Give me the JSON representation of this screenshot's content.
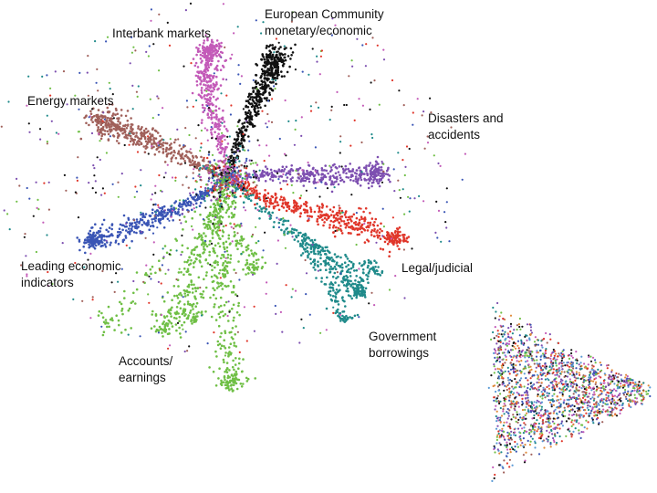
{
  "chart_data": {
    "type": "scatter",
    "title": "",
    "xlabel": "",
    "ylabel": "",
    "grid": false,
    "legend": "none",
    "background": "#ffffff",
    "labels": [
      {
        "key": "interbank",
        "lines": [
          "Interbank markets"
        ]
      },
      {
        "key": "ec",
        "lines": [
          "European Community",
          "monetary/economic"
        ]
      },
      {
        "key": "energy",
        "lines": [
          "Energy markets"
        ]
      },
      {
        "key": "disasters",
        "lines": [
          "Disasters and",
          "accidents"
        ]
      },
      {
        "key": "leading",
        "lines": [
          "Leading economic",
          "indicators"
        ]
      },
      {
        "key": "legal",
        "lines": [
          "Legal/judicial"
        ]
      },
      {
        "key": "government",
        "lines": [
          "Government",
          "borrowings"
        ]
      },
      {
        "key": "accounts",
        "lines": [
          "Accounts/",
          "earnings"
        ]
      }
    ],
    "series": [
      {
        "key": "interbank",
        "color": "#c35ab8"
      },
      {
        "key": "ec",
        "color": "#111111"
      },
      {
        "key": "energy",
        "color": "#a0605a"
      },
      {
        "key": "disasters",
        "color": "#7d4fb0"
      },
      {
        "key": "leading",
        "color": "#3a55b5"
      },
      {
        "key": "legal",
        "color": "#e0362a"
      },
      {
        "key": "government",
        "color": "#1f8a8a"
      },
      {
        "key": "accounts",
        "color": "#6fbf45"
      }
    ],
    "inset_colors": [
      "#c35ab8",
      "#111111",
      "#a0605a",
      "#7d4fb0",
      "#3a55b5",
      "#e0362a",
      "#1f8a8a",
      "#6fbf45",
      "#e08a3a",
      "#5a9ad5"
    ]
  }
}
